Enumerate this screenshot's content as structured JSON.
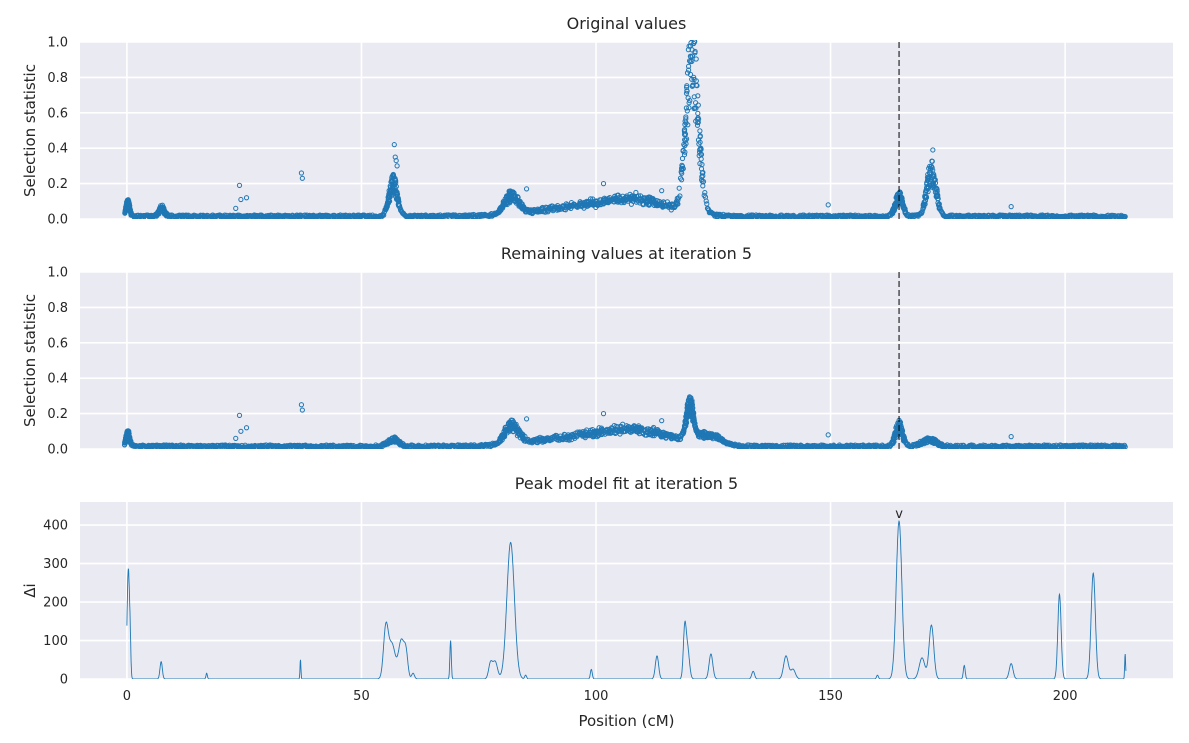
{
  "chart_data": [
    {
      "type": "scatter",
      "title": "Original values",
      "ylabel": "Selection statistic",
      "xlabel": "",
      "xlim": [
        -10,
        223
      ],
      "ylim": [
        0,
        1.0
      ],
      "yticks": [
        0.0,
        0.2,
        0.4,
        0.6,
        0.8,
        1.0
      ],
      "xticks": [
        0,
        50,
        100,
        150,
        200
      ],
      "show_xticklabels": false,
      "grid": true,
      "vline_x": 164.6,
      "series_color": "#1f77b4",
      "baseline_range": [
        0,
        212.8
      ],
      "baseline_level": 0.015,
      "peaks": [
        {
          "x": 0.2,
          "height": 0.08,
          "width": 0.4
        },
        {
          "x": 7.4,
          "height": 0.05,
          "width": 0.6
        },
        {
          "x": 56.8,
          "height": 0.2,
          "width": 0.9
        },
        {
          "x": 82.0,
          "height": 0.11,
          "width": 1.5
        },
        {
          "x": 98.0,
          "height": 0.06,
          "width": 10.0
        },
        {
          "x": 110.0,
          "height": 0.07,
          "width": 7.0
        },
        {
          "x": 120.5,
          "height": 0.93,
          "width": 1.3
        },
        {
          "x": 164.6,
          "height": 0.12,
          "width": 0.8
        },
        {
          "x": 171.5,
          "height": 0.27,
          "width": 1.0
        }
      ],
      "outliers": [
        {
          "x": 23.2,
          "y": 0.06
        },
        {
          "x": 24.0,
          "y": 0.19
        },
        {
          "x": 24.3,
          "y": 0.11
        },
        {
          "x": 25.5,
          "y": 0.12
        },
        {
          "x": 37.2,
          "y": 0.26
        },
        {
          "x": 37.4,
          "y": 0.23
        },
        {
          "x": 57.0,
          "y": 0.42
        },
        {
          "x": 57.2,
          "y": 0.35
        },
        {
          "x": 57.4,
          "y": 0.33
        },
        {
          "x": 57.6,
          "y": 0.3
        },
        {
          "x": 85.2,
          "y": 0.17
        },
        {
          "x": 101.6,
          "y": 0.2
        },
        {
          "x": 108.5,
          "y": 0.15
        },
        {
          "x": 114.0,
          "y": 0.16
        },
        {
          "x": 121.0,
          "y": 1.0
        },
        {
          "x": 171.8,
          "y": 0.39
        },
        {
          "x": 188.5,
          "y": 0.07
        },
        {
          "x": 149.5,
          "y": 0.08
        }
      ]
    },
    {
      "type": "scatter",
      "title": "Remaining values at iteration 5",
      "ylabel": "Selection statistic",
      "xlabel": "",
      "xlim": [
        -10,
        223
      ],
      "ylim": [
        0,
        1.0
      ],
      "yticks": [
        0.0,
        0.2,
        0.4,
        0.6,
        0.8,
        1.0
      ],
      "xticks": [
        0,
        50,
        100,
        150,
        200
      ],
      "show_xticklabels": false,
      "grid": true,
      "vline_x": 164.6,
      "series_color": "#1f77b4",
      "baseline_range": [
        0,
        212.8
      ],
      "baseline_level": 0.015,
      "peaks": [
        {
          "x": 0.2,
          "height": 0.08,
          "width": 0.4
        },
        {
          "x": 56.8,
          "height": 0.04,
          "width": 1.2
        },
        {
          "x": 82.0,
          "height": 0.11,
          "width": 1.5
        },
        {
          "x": 98.0,
          "height": 0.06,
          "width": 10.0
        },
        {
          "x": 110.0,
          "height": 0.07,
          "width": 7.0
        },
        {
          "x": 120.0,
          "height": 0.2,
          "width": 0.8
        },
        {
          "x": 124.0,
          "height": 0.06,
          "width": 2.5
        },
        {
          "x": 164.6,
          "height": 0.12,
          "width": 0.8
        },
        {
          "x": 171.0,
          "height": 0.04,
          "width": 1.5
        }
      ],
      "outliers": [
        {
          "x": 23.2,
          "y": 0.06
        },
        {
          "x": 24.0,
          "y": 0.19
        },
        {
          "x": 24.3,
          "y": 0.1
        },
        {
          "x": 25.5,
          "y": 0.12
        },
        {
          "x": 37.2,
          "y": 0.25
        },
        {
          "x": 37.4,
          "y": 0.22
        },
        {
          "x": 85.2,
          "y": 0.17
        },
        {
          "x": 101.6,
          "y": 0.2
        },
        {
          "x": 114.0,
          "y": 0.16
        },
        {
          "x": 120.0,
          "y": 0.29
        },
        {
          "x": 120.2,
          "y": 0.27
        },
        {
          "x": 149.5,
          "y": 0.08
        },
        {
          "x": 188.5,
          "y": 0.07
        }
      ]
    },
    {
      "type": "line",
      "title": "Peak model fit at iteration 5",
      "ylabel": "Δi",
      "xlabel": "Position (cM)",
      "xlim": [
        -10,
        223
      ],
      "ylim": [
        0,
        460
      ],
      "yticks": [
        0,
        100,
        200,
        300,
        400
      ],
      "xticks": [
        0,
        50,
        100,
        150,
        200
      ],
      "show_xticklabels": true,
      "grid": true,
      "marker": {
        "x": 164.6,
        "label": "v"
      },
      "series_color": "#1f77b4",
      "peaks": [
        {
          "x": 0.3,
          "height": 285,
          "width": 0.25
        },
        {
          "x": 0.7,
          "height": 70,
          "width": 0.15
        },
        {
          "x": 7.3,
          "height": 45,
          "width": 0.25
        },
        {
          "x": 17.0,
          "height": 15,
          "width": 0.15
        },
        {
          "x": 37.0,
          "height": 50,
          "width": 0.1
        },
        {
          "x": 55.2,
          "height": 130,
          "width": 0.5
        },
        {
          "x": 56.5,
          "height": 90,
          "width": 0.7
        },
        {
          "x": 58.5,
          "height": 100,
          "width": 0.6
        },
        {
          "x": 59.5,
          "height": 60,
          "width": 0.4
        },
        {
          "x": 61.0,
          "height": 15,
          "width": 0.3
        },
        {
          "x": 69.0,
          "height": 100,
          "width": 0.15
        },
        {
          "x": 77.5,
          "height": 40,
          "width": 0.4
        },
        {
          "x": 78.5,
          "height": 45,
          "width": 0.5
        },
        {
          "x": 81.8,
          "height": 355,
          "width": 0.8
        },
        {
          "x": 85.0,
          "height": 10,
          "width": 0.2
        },
        {
          "x": 99.0,
          "height": 25,
          "width": 0.2
        },
        {
          "x": 113.0,
          "height": 60,
          "width": 0.35
        },
        {
          "x": 118.9,
          "height": 120,
          "width": 0.3
        },
        {
          "x": 119.5,
          "height": 80,
          "width": 0.4
        },
        {
          "x": 124.5,
          "height": 65,
          "width": 0.4
        },
        {
          "x": 133.5,
          "height": 20,
          "width": 0.3
        },
        {
          "x": 140.5,
          "height": 60,
          "width": 0.5
        },
        {
          "x": 142.0,
          "height": 25,
          "width": 0.5
        },
        {
          "x": 160.0,
          "height": 10,
          "width": 0.2
        },
        {
          "x": 164.6,
          "height": 410,
          "width": 0.6
        },
        {
          "x": 169.5,
          "height": 55,
          "width": 0.6
        },
        {
          "x": 171.5,
          "height": 140,
          "width": 0.5
        },
        {
          "x": 178.5,
          "height": 35,
          "width": 0.2
        },
        {
          "x": 188.5,
          "height": 40,
          "width": 0.4
        },
        {
          "x": 198.8,
          "height": 220,
          "width": 0.35
        },
        {
          "x": 206.0,
          "height": 275,
          "width": 0.45
        },
        {
          "x": 212.8,
          "height": 65,
          "width": 0.1
        }
      ]
    }
  ]
}
